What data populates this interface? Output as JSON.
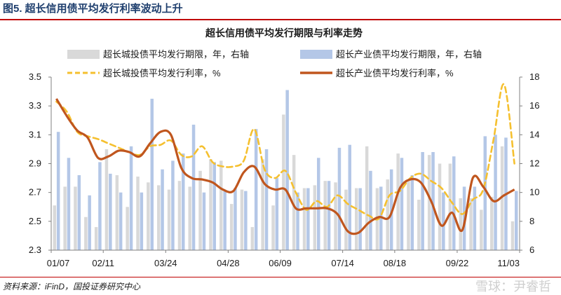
{
  "figure": {
    "title": "图5. 超长信用债平均发行利率波动上升",
    "source": "资料来源：iFinD，国投证券研究中心",
    "watermark": "雪球：尹睿哲"
  },
  "chart_data": {
    "type": "bar",
    "title": "超长信用债平均发行期限与利率走势",
    "x_tick_labels": [
      "01/07",
      "02/11",
      "03/24",
      "04/28",
      "06/09",
      "07/14",
      "08/18",
      "09/22",
      "11/03"
    ],
    "n_periods": 45,
    "y_left": [
      2.3,
      3.5
    ],
    "y_left_ticks": [
      "2.3",
      "2.5",
      "2.7",
      "2.9",
      "3.1",
      "3.3",
      "3.5"
    ],
    "y_right": [
      6,
      18
    ],
    "y_right_ticks": [
      "6",
      "8",
      "10",
      "12",
      "14",
      "16",
      "18"
    ],
    "colors": {
      "city_bar": "#d9d9d9",
      "ind_bar": "#b4c7e7",
      "city_line": "#f5c02f",
      "ind_line": "#c0561e"
    },
    "series": [
      {
        "name": "超长城投债平均发行期限，年，右轴",
        "kind": "bar",
        "axis": "right",
        "values": [
          9.1,
          10.4,
          10.4,
          8.3,
          7.6,
          13.0,
          11.2,
          9.0,
          11.1,
          10.7,
          10.5,
          10.2,
          10.8,
          10.4,
          11.5,
          12.3,
          12.2,
          9.2,
          10.2,
          7.6,
          12.3,
          9.1,
          15.4,
          12.6,
          10.3,
          10.5,
          10.8,
          10.7,
          10.2,
          10.3,
          13.2,
          10.3,
          10.9,
          12.7,
          10.9,
          9.5,
          12.6,
          12.0,
          12.0,
          9.6,
          9.6,
          8.8,
          9.7,
          13.2,
          8.0
        ],
        "legend_pos": "top-left"
      },
      {
        "name": "超长产业债平均发行期限，年，右轴",
        "kind": "bar",
        "axis": "right",
        "values": [
          14.2,
          12.4,
          11.2,
          9.8,
          12.1,
          11.3,
          10.0,
          13.2,
          10.0,
          16.5,
          11.6,
          12.2,
          12.7,
          14.7,
          10.0,
          12.1,
          10.1,
          10.3,
          10.1,
          14.4,
          13.0,
          11.0,
          17.1,
          10.0,
          10.3,
          12.4,
          10.8,
          13.1,
          13.3,
          10.3,
          11.5,
          10.4,
          11.6,
          12.4,
          11.2,
          12.8,
          12.8,
          10.0,
          12.5,
          10.4,
          10.4,
          13.9,
          14.0,
          13.8,
          10.1
        ],
        "legend_pos": "top-right"
      },
      {
        "name": "超长城投债平均发行利率，%",
        "kind": "line",
        "axis": "left",
        "values": [
          3.33,
          3.26,
          3.12,
          3.09,
          3.07,
          3.04,
          3.01,
          2.98,
          2.96,
          3.02,
          3.03,
          3.06,
          2.96,
          2.95,
          3.02,
          2.91,
          2.88,
          2.88,
          2.92,
          3.14,
          2.86,
          2.8,
          2.85,
          2.7,
          2.58,
          2.64,
          2.6,
          2.68,
          2.62,
          2.58,
          2.54,
          2.52,
          2.68,
          2.71,
          2.8,
          2.83,
          2.78,
          2.73,
          2.63,
          2.55,
          2.65,
          2.72,
          3.07,
          3.45,
          2.9
        ],
        "legend_pos": "middle-left"
      },
      {
        "name": "超长产业债平均发行利率，%",
        "kind": "line",
        "axis": "left",
        "values": [
          3.35,
          3.23,
          3.13,
          3.08,
          2.94,
          2.95,
          2.99,
          2.98,
          2.95,
          3.04,
          3.12,
          3.1,
          2.87,
          2.8,
          2.79,
          2.77,
          2.72,
          2.71,
          2.84,
          2.88,
          2.76,
          2.72,
          2.72,
          2.59,
          2.59,
          2.59,
          2.59,
          2.55,
          2.43,
          2.42,
          2.49,
          2.53,
          2.53,
          2.73,
          2.79,
          2.77,
          2.64,
          2.47,
          2.56,
          2.44,
          2.8,
          2.74,
          2.64,
          2.68,
          2.72
        ],
        "legend_pos": "middle-right"
      }
    ],
    "grid": false,
    "legend_placement": "top"
  }
}
